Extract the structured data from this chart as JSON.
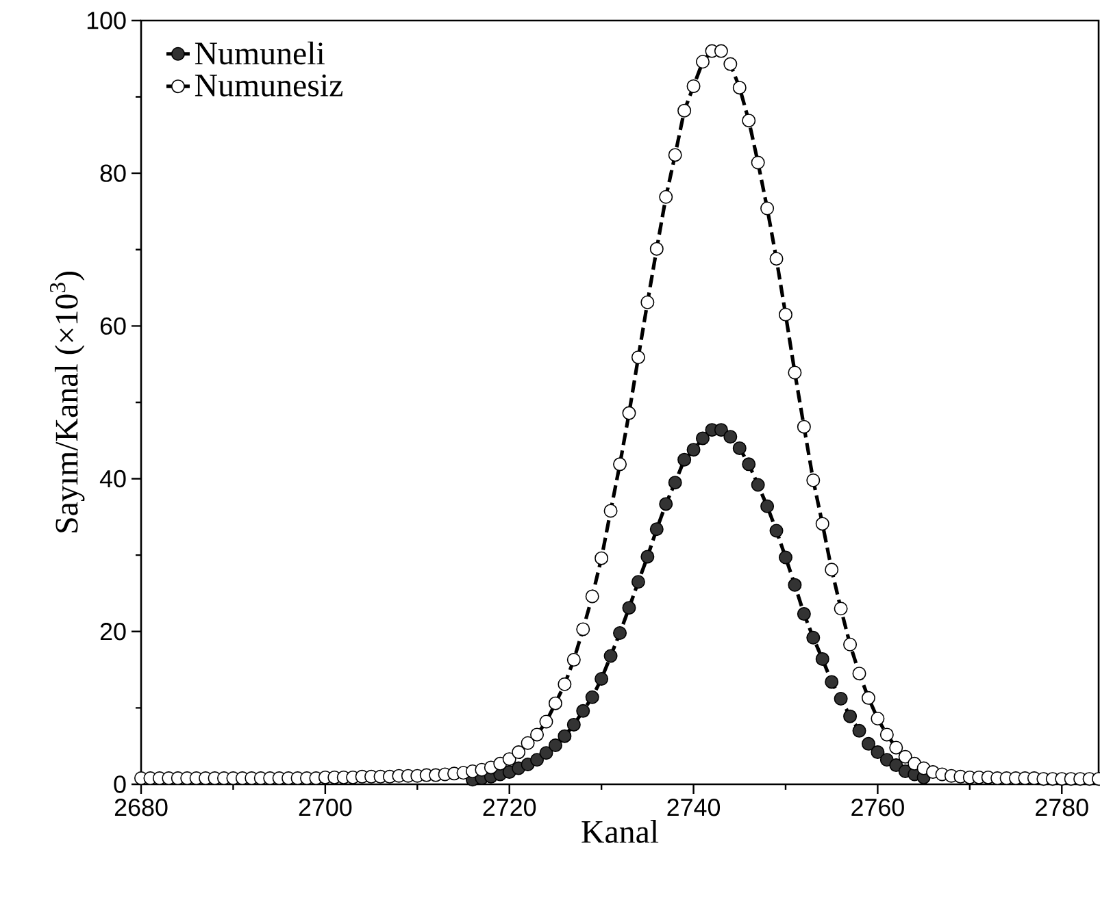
{
  "chart_data": {
    "type": "line",
    "xlabel": "Kanal",
    "ylabel": "Sayım/Kanal (×10$^{3}$)",
    "xlim": [
      2680,
      2784
    ],
    "ylim": [
      0,
      100
    ],
    "xticks": [
      2680,
      2700,
      2720,
      2740,
      2760,
      2780
    ],
    "yticks": [
      0,
      20,
      40,
      60,
      80,
      100
    ],
    "legend": "top left",
    "marker": "circle",
    "line_style": "dashed",
    "series": [
      {
        "name": "Numuneli",
        "color": "#333333",
        "x": [
          2716,
          2717,
          2718,
          2719,
          2720,
          2721,
          2722,
          2723,
          2724,
          2725,
          2726,
          2727,
          2728,
          2729,
          2730,
          2731,
          2732,
          2733,
          2734,
          2735,
          2736,
          2737,
          2738,
          2739,
          2740,
          2741,
          2742,
          2743,
          2744,
          2745,
          2746,
          2747,
          2748,
          2749,
          2750,
          2751,
          2752,
          2753,
          2754,
          2755,
          2756,
          2757,
          2758,
          2759,
          2760,
          2761,
          2762,
          2763,
          2764,
          2765
        ],
        "values": [
          0.6,
          0.8,
          1.0,
          1.3,
          1.6,
          2.1,
          2.6,
          3.2,
          4.1,
          5.1,
          6.3,
          7.8,
          9.6,
          11.4,
          13.8,
          16.8,
          19.8,
          23.1,
          26.5,
          29.8,
          33.4,
          36.7,
          39.5,
          42.5,
          43.8,
          45.3,
          46.4,
          46.4,
          45.5,
          44.0,
          41.9,
          39.2,
          36.4,
          33.2,
          29.7,
          26.1,
          22.3,
          19.2,
          16.4,
          13.4,
          11.2,
          8.9,
          7.0,
          5.3,
          4.2,
          3.2,
          2.5,
          1.7,
          1.3,
          0.9
        ]
      },
      {
        "name": "Numunesiz",
        "color": "#ffffff",
        "x": [
          2680,
          2681,
          2682,
          2683,
          2684,
          2685,
          2686,
          2687,
          2688,
          2689,
          2690,
          2691,
          2692,
          2693,
          2694,
          2695,
          2696,
          2697,
          2698,
          2699,
          2700,
          2701,
          2702,
          2703,
          2704,
          2705,
          2706,
          2707,
          2708,
          2709,
          2710,
          2711,
          2712,
          2713,
          2714,
          2715,
          2716,
          2717,
          2718,
          2719,
          2720,
          2721,
          2722,
          2723,
          2724,
          2725,
          2726,
          2727,
          2728,
          2729,
          2730,
          2731,
          2732,
          2733,
          2734,
          2735,
          2736,
          2737,
          2738,
          2739,
          2740,
          2741,
          2742,
          2743,
          2744,
          2745,
          2746,
          2747,
          2748,
          2749,
          2750,
          2751,
          2752,
          2753,
          2754,
          2755,
          2756,
          2757,
          2758,
          2759,
          2760,
          2761,
          2762,
          2763,
          2764,
          2765,
          2766,
          2767,
          2768,
          2769,
          2770,
          2771,
          2772,
          2773,
          2774,
          2775,
          2776,
          2777,
          2778,
          2779,
          2780,
          2781,
          2782,
          2783,
          2784
        ],
        "values": [
          0.8,
          0.8,
          0.8,
          0.8,
          0.8,
          0.8,
          0.8,
          0.8,
          0.8,
          0.8,
          0.8,
          0.8,
          0.8,
          0.8,
          0.8,
          0.8,
          0.8,
          0.8,
          0.8,
          0.8,
          0.9,
          0.9,
          0.9,
          0.9,
          1.0,
          1.0,
          1.0,
          1.0,
          1.1,
          1.1,
          1.1,
          1.2,
          1.2,
          1.3,
          1.4,
          1.5,
          1.7,
          1.9,
          2.2,
          2.7,
          3.3,
          4.2,
          5.4,
          6.5,
          8.2,
          10.6,
          13.1,
          16.3,
          20.3,
          24.6,
          29.6,
          35.8,
          41.9,
          48.6,
          55.9,
          63.1,
          70.1,
          76.9,
          82.4,
          88.2,
          91.4,
          94.6,
          96.0,
          96.0,
          94.3,
          91.2,
          86.9,
          81.4,
          75.4,
          68.8,
          61.5,
          53.9,
          46.8,
          39.8,
          34.1,
          28.1,
          23.0,
          18.3,
          14.5,
          11.3,
          8.6,
          6.5,
          4.8,
          3.6,
          2.7,
          2.1,
          1.6,
          1.3,
          1.1,
          1.0,
          0.9,
          0.9,
          0.9,
          0.8,
          0.8,
          0.8,
          0.8,
          0.8,
          0.7,
          0.7,
          0.7,
          0.7,
          0.7,
          0.7,
          0.7
        ]
      }
    ]
  }
}
